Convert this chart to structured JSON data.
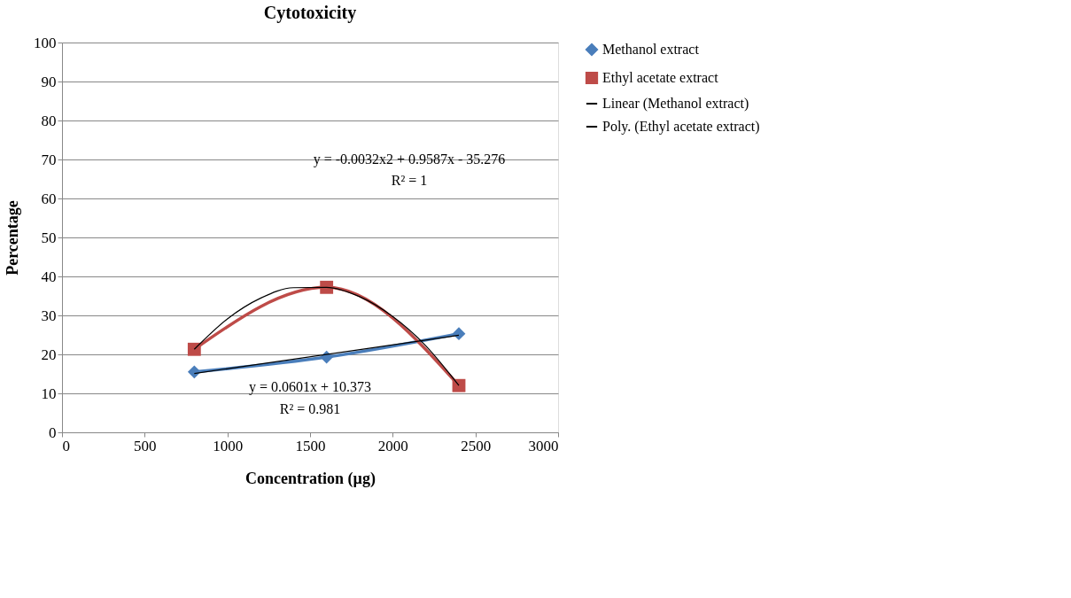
{
  "chart_data": {
    "type": "line",
    "title": "Cytotoxicity",
    "xlabel": "Concentration (µg)",
    "ylabel": "Percentage",
    "xlim": [
      0,
      3000
    ],
    "xticks": [
      0,
      500,
      1000,
      1500,
      2000,
      2500,
      3000
    ],
    "ylim": [
      0,
      100
    ],
    "yticks": [
      0,
      10,
      20,
      30,
      40,
      50,
      60,
      70,
      80,
      90,
      100
    ],
    "grid": "y",
    "legend": "right",
    "series": [
      {
        "name": "Methanol extract",
        "color": "#4a7ebb",
        "marker": "diamond",
        "x": [
          800,
          1600,
          2400
        ],
        "values": [
          15.5,
          19.3,
          25.3
        ]
      },
      {
        "name": "Ethyl acetate extract",
        "color": "#be4b48",
        "marker": "square",
        "x": [
          800,
          1600,
          2400
        ],
        "values": [
          21.3,
          37.2,
          12.0
        ]
      },
      {
        "name": "Linear (Methanol extract)",
        "color": "#000000",
        "marker": "none",
        "x": [
          800,
          2400
        ],
        "values": [
          15.1,
          24.9
        ]
      },
      {
        "name": "Poly. (Ethyl acetate extract)",
        "color": "#000000",
        "marker": "none",
        "x": [
          800,
          1000,
          1200,
          1400,
          1600,
          1800,
          2000,
          2200,
          2400
        ],
        "values": [
          21.3,
          29.1,
          34.4,
          37.1,
          37.2,
          34.8,
          29.7,
          22.2,
          12.0
        ]
      }
    ],
    "annotations": [
      "y = -0.0032x2 + 0.9587x - 35.276",
      "R² = 1",
      "y = 0.0601x + 10.373",
      "R² = 0.981"
    ]
  }
}
